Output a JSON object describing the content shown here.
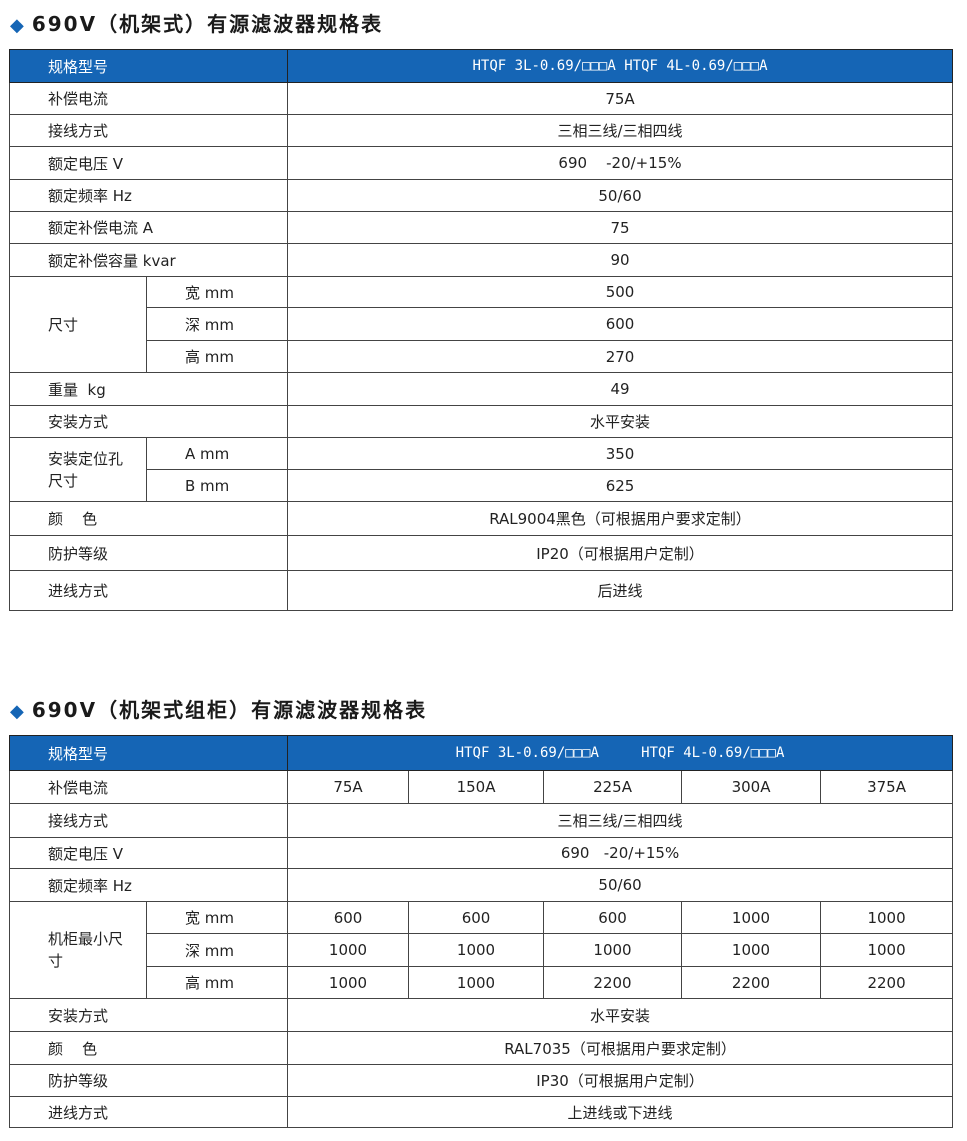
{
  "t1": {
    "title": "690V（机架式）有源滤波器规格表",
    "model_label": "规格型号",
    "model_value": "HTQF 3L-0.69/□□□A    HTQF 4L-0.69/□□□A",
    "rows": {
      "current": [
        "补偿电流",
        "75A"
      ],
      "wiring": [
        "接线方式",
        "三相三线/三相四线"
      ],
      "voltage": [
        "额定电压 V",
        "690    -20/+15%"
      ],
      "freq": [
        "额定频率 Hz",
        "50/60"
      ],
      "rated_current": [
        "额定补偿电流 A",
        "75"
      ],
      "capacity": [
        "额定补偿容量 kvar",
        "90"
      ],
      "size": "尺寸",
      "width": [
        "宽 mm",
        "500"
      ],
      "depth": [
        "深 mm",
        "600"
      ],
      "height": [
        "高 mm",
        "270"
      ],
      "weight": [
        "重量  kg",
        "49"
      ],
      "install": [
        "安装方式",
        "水平安装"
      ],
      "hole": "安装定位孔尺寸",
      "hole_a": [
        "A mm",
        "350"
      ],
      "hole_b": [
        "B mm",
        "625"
      ],
      "color": [
        "颜    色",
        "RAL9004黑色（可根据用户要求定制）"
      ],
      "protect": [
        "防护等级",
        "IP20（可根据用户定制）"
      ],
      "inlet": [
        "进线方式",
        "后进线"
      ]
    }
  },
  "t2": {
    "title": "690V（机架式组柜）有源滤波器规格表",
    "model_label": "规格型号",
    "model_value": "HTQF 3L-0.69/□□□A     HTQF 4L-0.69/□□□A",
    "current_label": "补偿电流",
    "currents": [
      "75A",
      "150A",
      "225A",
      "300A",
      "375A"
    ],
    "wiring": [
      "接线方式",
      "三相三线/三相四线"
    ],
    "voltage": [
      "额定电压 V",
      "690   -20/+15%"
    ],
    "freq": [
      "额定频率 Hz",
      "50/60"
    ],
    "cabinet": "机柜最小尺寸",
    "width_label": "宽 mm",
    "widths": [
      "600",
      "600",
      "600",
      "1000",
      "1000"
    ],
    "depth_label": "深 mm",
    "depths": [
      "1000",
      "1000",
      "1000",
      "1000",
      "1000"
    ],
    "height_label": "高 mm",
    "heights": [
      "1000",
      "1000",
      "2200",
      "2200",
      "2200"
    ],
    "install": [
      "安装方式",
      "水平安装"
    ],
    "color": [
      "颜    色",
      "RAL7035（可根据用户要求定制）"
    ],
    "protect": [
      "防护等级",
      "IP30（可根据用户定制）"
    ],
    "inlet": [
      "进线方式",
      "上进线或下进线"
    ]
  }
}
